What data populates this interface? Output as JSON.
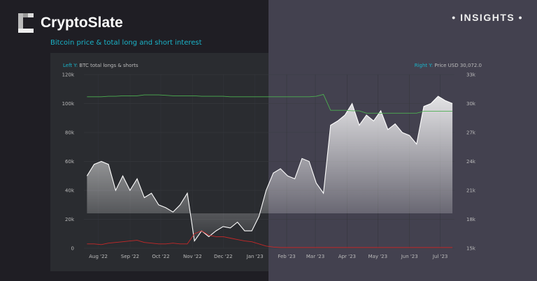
{
  "brand": {
    "name": "CryptoSlate",
    "badge": "• INSIGHTS •"
  },
  "colors": {
    "accent": "#1ab3c8",
    "area_series": "#ffffff",
    "green_series": "#4caf50",
    "red_series": "#c62828"
  },
  "chart_data": {
    "type": "area",
    "title": "Bitcoin price & total long and short interest",
    "left_axis": {
      "prefix": "Left Y:",
      "label": "BTC total longs & shorts",
      "ylim": [
        0,
        120000
      ],
      "ticks": [
        "0",
        "20k",
        "40k",
        "60k",
        "80k",
        "100k",
        "120k"
      ]
    },
    "right_axis": {
      "prefix": "Right Y:",
      "label": "Price USD 30,072.0",
      "ylim": [
        15000,
        33000
      ],
      "ticks": [
        "15k",
        "18k",
        "21k",
        "24k",
        "27k",
        "30k",
        "33k"
      ]
    },
    "x_ticks": [
      "Aug '22",
      "Sep '22",
      "Oct '22",
      "Nov '22",
      "Dec '22",
      "Jan '23",
      "Feb '23",
      "Mar '23",
      "Apr '23",
      "May '23",
      "Jun '23",
      "Jul '23"
    ],
    "x": [
      "2022-07-25",
      "2022-08-01",
      "2022-08-08",
      "2022-08-15",
      "2022-08-22",
      "2022-08-29",
      "2022-09-05",
      "2022-09-12",
      "2022-09-19",
      "2022-09-26",
      "2022-10-03",
      "2022-10-10",
      "2022-10-17",
      "2022-10-24",
      "2022-10-31",
      "2022-11-07",
      "2022-11-14",
      "2022-11-21",
      "2022-11-28",
      "2022-12-05",
      "2022-12-12",
      "2022-12-19",
      "2022-12-26",
      "2023-01-02",
      "2023-01-09",
      "2023-01-16",
      "2023-01-23",
      "2023-01-30",
      "2023-02-06",
      "2023-02-13",
      "2023-02-20",
      "2023-02-27",
      "2023-03-06",
      "2023-03-13",
      "2023-03-20",
      "2023-03-27",
      "2023-04-03",
      "2023-04-10",
      "2023-04-17",
      "2023-04-24",
      "2023-05-01",
      "2023-05-08",
      "2023-05-15",
      "2023-05-22",
      "2023-05-29",
      "2023-06-05",
      "2023-06-12",
      "2023-06-19",
      "2023-06-26",
      "2023-07-03",
      "2023-07-10",
      "2023-07-17"
    ],
    "series": [
      {
        "axis": "left",
        "values": [
          50000,
          58000,
          60000,
          58000,
          40000,
          50000,
          40000,
          48000,
          35000,
          38000,
          30000,
          28000,
          25000,
          30000,
          38000,
          5000,
          12000,
          8000,
          12000,
          15000,
          14000,
          18000,
          12000,
          12000,
          22000,
          40000,
          52000,
          55000,
          50000,
          48000,
          62000,
          60000,
          45000,
          38000,
          85000,
          88000,
          92000,
          100000,
          85000,
          92000,
          88000,
          95000,
          82000,
          86000,
          80000,
          78000,
          72000,
          98000,
          100000,
          105000,
          102000,
          100000
        ]
      },
      {
        "axis": "right",
        "values": [
          30700,
          30700,
          30700,
          30750,
          30750,
          30800,
          30800,
          30800,
          30900,
          30900,
          30900,
          30850,
          30800,
          30800,
          30800,
          30800,
          30750,
          30750,
          30750,
          30750,
          30700,
          30700,
          30700,
          30700,
          30700,
          30700,
          30700,
          30700,
          30700,
          30700,
          30700,
          30700,
          30750,
          30950,
          29300,
          29300,
          29300,
          29250,
          29250,
          29000,
          29000,
          29000,
          29000,
          29000,
          29000,
          29000,
          29000,
          29200,
          29200,
          29200,
          29200,
          29200
        ]
      },
      {
        "axis": "left",
        "values": [
          3000,
          3000,
          2500,
          3500,
          4000,
          4500,
          5000,
          5500,
          4000,
          3500,
          3000,
          3000,
          3500,
          3000,
          3000,
          10000,
          12000,
          9000,
          8000,
          8000,
          7000,
          6000,
          5000,
          4500,
          3000,
          1500,
          800,
          500,
          500,
          500,
          500,
          500,
          500,
          500,
          500,
          500,
          500,
          500,
          500,
          500,
          500,
          500,
          500,
          500,
          500,
          500,
          500,
          500,
          500,
          500,
          500,
          500
        ]
      }
    ]
  }
}
